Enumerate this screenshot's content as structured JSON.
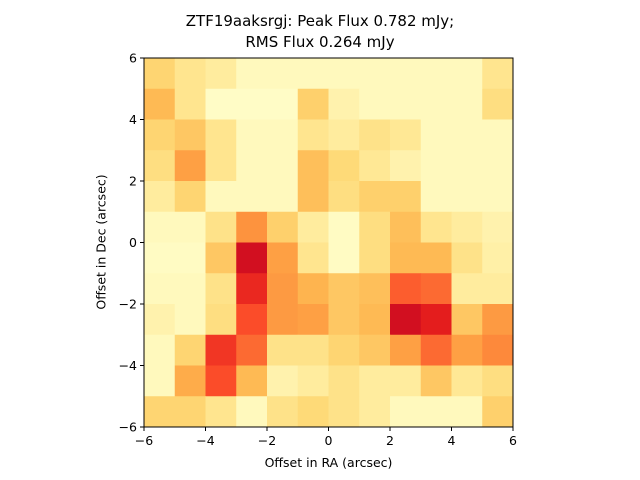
{
  "chart_data": {
    "type": "heatmap",
    "title_lines": [
      "ZTF19aaksrgj: Peak Flux 0.782 mJy;",
      "RMS Flux 0.264 mJy"
    ],
    "xlabel": "Offset in RA (arcsec)",
    "ylabel": "Offset in Dec (arcsec)",
    "xlim": [
      -6,
      6
    ],
    "ylim": [
      -6,
      6
    ],
    "x_ticks": [
      -6,
      -4,
      -2,
      0,
      2,
      4,
      6
    ],
    "y_ticks": [
      -6,
      -4,
      -2,
      0,
      2,
      4,
      6
    ],
    "x_tick_labels": [
      "−6",
      "−4",
      "−2",
      "0",
      "2",
      "4",
      "6"
    ],
    "y_tick_labels": [
      "−6",
      "−4",
      "−2",
      "0",
      "2",
      "4",
      "6"
    ],
    "colormap": [
      "#ffffcc",
      "#ffeda0",
      "#fed976",
      "#feb24c",
      "#fd8d3c",
      "#fc4e2a",
      "#e31a1c",
      "#bd0026"
    ],
    "grid": false,
    "legend": "none",
    "rows_top_to_bottom": [
      [
        0.3,
        0.2,
        0.15,
        0.05,
        0.05,
        0.05,
        0.05,
        0.05,
        0.05,
        0.05,
        0.05,
        0.2
      ],
      [
        0.4,
        0.2,
        0.02,
        0.02,
        0.02,
        0.32,
        0.1,
        0.05,
        0.05,
        0.05,
        0.05,
        0.25
      ],
      [
        0.3,
        0.35,
        0.2,
        0.05,
        0.05,
        0.2,
        0.15,
        0.22,
        0.18,
        0.05,
        0.05,
        0.05
      ],
      [
        0.25,
        0.5,
        0.2,
        0.05,
        0.05,
        0.38,
        0.28,
        0.18,
        0.1,
        0.05,
        0.05,
        0.05
      ],
      [
        0.15,
        0.3,
        0.05,
        0.05,
        0.05,
        0.38,
        0.25,
        0.32,
        0.32,
        0.05,
        0.05,
        0.05
      ],
      [
        0.05,
        0.05,
        0.22,
        0.55,
        0.32,
        0.15,
        0.03,
        0.25,
        0.38,
        0.2,
        0.15,
        0.1
      ],
      [
        0.03,
        0.03,
        0.35,
        0.92,
        0.5,
        0.2,
        0.03,
        0.25,
        0.4,
        0.4,
        0.22,
        0.12
      ],
      [
        0.05,
        0.05,
        0.22,
        0.82,
        0.52,
        0.42,
        0.35,
        0.38,
        0.68,
        0.65,
        0.15,
        0.15
      ],
      [
        0.1,
        0.05,
        0.25,
        0.72,
        0.52,
        0.5,
        0.35,
        0.4,
        0.92,
        0.85,
        0.35,
        0.52
      ],
      [
        0.05,
        0.3,
        0.78,
        0.65,
        0.22,
        0.22,
        0.3,
        0.35,
        0.5,
        0.65,
        0.5,
        0.58
      ],
      [
        0.05,
        0.45,
        0.72,
        0.4,
        0.1,
        0.15,
        0.22,
        0.15,
        0.15,
        0.35,
        0.18,
        0.25
      ],
      [
        0.3,
        0.3,
        0.2,
        0.05,
        0.22,
        0.28,
        0.22,
        0.15,
        0.05,
        0.05,
        0.05,
        0.32
      ]
    ]
  }
}
